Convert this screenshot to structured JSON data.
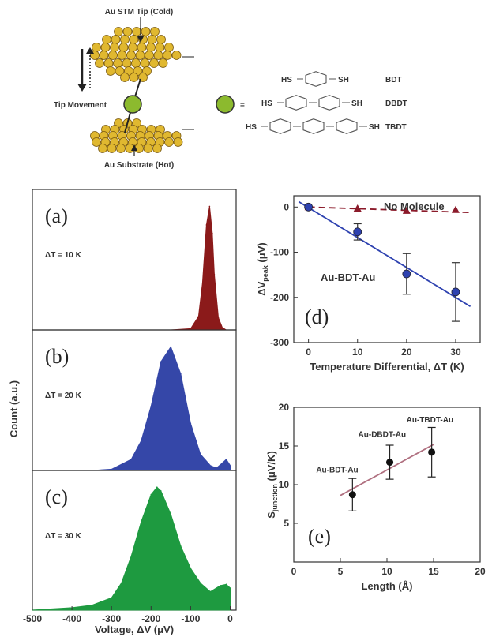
{
  "schematic": {
    "tip_label": "Au STM Tip (Cold)",
    "substrate_label": "Au Substrate (Hot)",
    "movement_label": "Tip Movement",
    "equals": "=",
    "thiol": "SH",
    "thiol_left": "HS",
    "molecules": [
      {
        "name": "BDT",
        "rings": 1
      },
      {
        "name": "DBDT",
        "rings": 2
      },
      {
        "name": "TBDT",
        "rings": 3
      }
    ]
  },
  "chart_data": [
    {
      "type": "area",
      "panel": "(a)",
      "annotation": "ΔT = 10 K",
      "color": "#8b1a1a",
      "peak_x": -52,
      "sigma_left": 14,
      "sigma_right": 10,
      "x": [
        -500,
        -450,
        -400,
        -350,
        -300,
        -250,
        -200,
        -150,
        -100,
        -80,
        -70,
        -60,
        -52,
        -45,
        -40,
        -30,
        -20,
        -10,
        0
      ],
      "values": [
        0,
        0,
        0,
        0,
        0,
        0,
        0,
        0,
        0.01,
        0.11,
        0.38,
        0.85,
        1.0,
        0.78,
        0.45,
        0.1,
        0.02,
        0.0,
        0.0
      ]
    },
    {
      "type": "area",
      "panel": "(b)",
      "annotation": "ΔT = 20 K",
      "color": "#3547a8",
      "x": [
        -500,
        -450,
        -400,
        -350,
        -300,
        -250,
        -225,
        -200,
        -175,
        -150,
        -125,
        -100,
        -75,
        -50,
        -35,
        -20,
        -10,
        0
      ],
      "values": [
        0,
        0,
        0,
        0,
        0.01,
        0.09,
        0.24,
        0.52,
        0.88,
        1.0,
        0.78,
        0.38,
        0.13,
        0.04,
        0.02,
        0.06,
        0.09,
        0.04
      ]
    },
    {
      "type": "area",
      "panel": "(c)",
      "annotation": "ΔT = 30 K",
      "color": "#1e9a40",
      "x": [
        -500,
        -450,
        -400,
        -350,
        -300,
        -275,
        -250,
        -225,
        -200,
        -185,
        -175,
        -150,
        -125,
        -100,
        -75,
        -50,
        -25,
        -10,
        0
      ],
      "values": [
        0,
        0.01,
        0.02,
        0.04,
        0.1,
        0.22,
        0.44,
        0.72,
        0.94,
        1.0,
        0.97,
        0.78,
        0.52,
        0.34,
        0.22,
        0.15,
        0.2,
        0.21,
        0.18
      ]
    },
    {
      "type": "scatter",
      "panel": "(d)",
      "xlabel": "Temperature Differential, ΔT (K)",
      "ylabel_main": "ΔV",
      "ylabel_sub": "peak",
      "ylabel_unit": "(μV)",
      "xlim": [
        -3,
        35
      ],
      "ylim": [
        -300,
        25
      ],
      "xticks": [
        "0",
        "10",
        "20",
        "30"
      ],
      "xtick_values": [
        0,
        10,
        20,
        30
      ],
      "yticks": [
        "0",
        "-100",
        "-200",
        "-300"
      ],
      "ytick_values": [
        0,
        -100,
        -200,
        -300
      ],
      "series": [
        {
          "name": "No Molecule",
          "color": "#8b1a2a",
          "marker": "triangle",
          "x": [
            0,
            10,
            20,
            30
          ],
          "y": [
            0,
            -3,
            -8,
            -6
          ],
          "fit": [
            [
              0,
              0
            ],
            [
              33,
              -12
            ]
          ],
          "dashed": true
        },
        {
          "name": "Au-BDT-Au",
          "color": "#2e42b0",
          "marker": "circle",
          "x": [
            0,
            10,
            20,
            30
          ],
          "y": [
            0,
            -55,
            -148,
            -188
          ],
          "yerr": [
            0,
            18,
            45,
            65
          ],
          "fit": [
            [
              -2,
              12
            ],
            [
              33,
              -220
            ]
          ],
          "dashed": false
        }
      ]
    },
    {
      "type": "scatter",
      "panel": "(e)",
      "xlabel": "Length (Å)",
      "ylabel_main": "S",
      "ylabel_sub": "junction",
      "ylabel_unit": "(μV/K)",
      "xlim": [
        0,
        20
      ],
      "ylim": [
        0,
        20
      ],
      "xticks": [
        "0",
        "5",
        "10",
        "15",
        "20"
      ],
      "xtick_values": [
        0,
        5,
        10,
        15,
        20
      ],
      "yticks": [
        "5",
        "10",
        "15",
        "20"
      ],
      "ytick_values": [
        5,
        10,
        15,
        20
      ],
      "points": [
        {
          "label": "Au-BDT-Au",
          "x": 6.3,
          "y": 8.7,
          "err": 2.1
        },
        {
          "label": "Au-DBDT-Au",
          "x": 10.3,
          "y": 12.9,
          "err": 2.2
        },
        {
          "label": "Au-TBDT-Au",
          "x": 14.8,
          "y": 14.2,
          "err": 3.2
        }
      ],
      "fit": [
        [
          5,
          8.6
        ],
        [
          15,
          15.2
        ]
      ],
      "fit_color": "#b07080"
    }
  ],
  "axes_left": {
    "ylabel": "Count (a.u.)",
    "xlabel": "Voltage, ΔV (μV)",
    "xlim": [
      -500,
      15
    ],
    "xticks": [
      "-500",
      "-400",
      "-300",
      "-200",
      "-100",
      "0"
    ],
    "xtick_values": [
      -500,
      -400,
      -300,
      -200,
      -100,
      0
    ]
  }
}
